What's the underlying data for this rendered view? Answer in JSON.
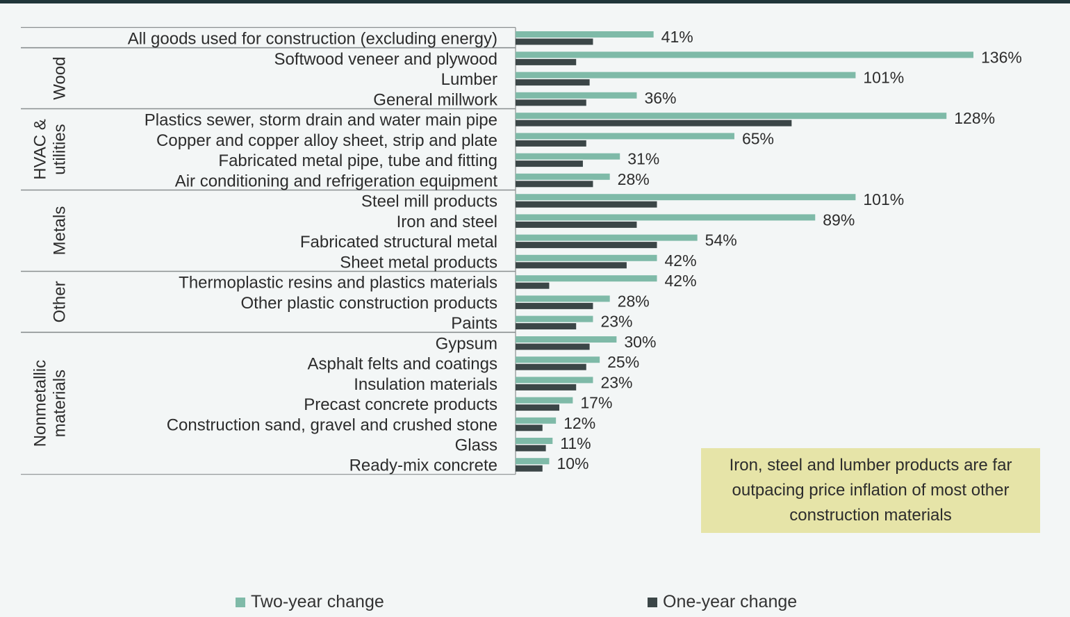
{
  "chart_data": {
    "type": "bar",
    "orientation": "horizontal",
    "categories": [
      "All goods used for construction (excluding energy)",
      "Softwood veneer and plywood",
      "Lumber",
      "General millwork",
      "Plastics sewer, storm drain and water main pipe",
      "Copper and copper alloy sheet, strip and plate",
      "Fabricated metal pipe, tube and fitting",
      "Air conditioning and refrigeration equipment",
      "Steel mill products",
      "Iron and steel",
      "Fabricated structural metal",
      "Sheet metal products",
      "Thermoplastic resins and plastics materials",
      "Other plastic construction products",
      "Paints",
      "Gypsum",
      "Asphalt felts and coatings",
      "Insulation materials",
      "Precast concrete products",
      "Construction sand, gravel and crushed stone",
      "Glass",
      "Ready-mix concrete"
    ],
    "groups": [
      {
        "label": "",
        "size": 1
      },
      {
        "label": "Wood",
        "size": 3
      },
      {
        "label": "HVAC & utilities",
        "size": 4
      },
      {
        "label": "Metals",
        "size": 4
      },
      {
        "label": "Other",
        "size": 3
      },
      {
        "label": "Nonmetallic materials",
        "size": 7
      }
    ],
    "series": [
      {
        "name": "Two-year change",
        "color": "#7fbaa8",
        "values": [
          41,
          136,
          101,
          36,
          128,
          65,
          31,
          28,
          101,
          89,
          54,
          42,
          42,
          28,
          23,
          30,
          25,
          23,
          17,
          12,
          11,
          10
        ]
      },
      {
        "name": "One-year change",
        "color": "#3b4647",
        "values": [
          23,
          18,
          22,
          21,
          82,
          21,
          20,
          23,
          42,
          36,
          42,
          33,
          10,
          23,
          18,
          22,
          21,
          18,
          13,
          8,
          9,
          8
        ]
      }
    ],
    "data_labels": [
      "41%",
      "136%",
      "101%",
      "36%",
      "128%",
      "65%",
      "31%",
      "28%",
      "101%",
      "89%",
      "54%",
      "42%",
      "42%",
      "28%",
      "23%",
      "30%",
      "25%",
      "23%",
      "17%",
      "12%",
      "11%",
      "10%"
    ],
    "xlim": [
      0,
      136
    ],
    "legend": "bottom",
    "grid": false
  },
  "callout": {
    "text": "Iron, steel and lumber products are far outpacing price inflation of most other construction materials"
  },
  "legend": [
    {
      "label": "Two-year change",
      "color": "#7fbaa8"
    },
    {
      "label": "One-year change",
      "color": "#3b4647"
    }
  ]
}
